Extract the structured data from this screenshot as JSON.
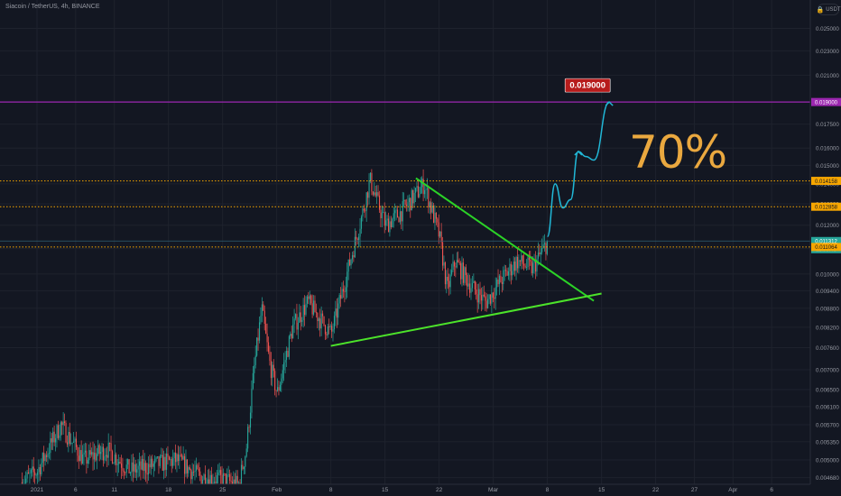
{
  "header": {
    "title": "Siacoin / TetherUS, 4h, BINANCE"
  },
  "currency_button": {
    "label": "USDT",
    "icon": "lock-icon"
  },
  "colors": {
    "background": "#131722",
    "grid": "#1e222d",
    "up": "#26a69a",
    "down": "#ef5350",
    "resistance": "#f7a600",
    "target": "#9c27b0",
    "trendline_down": "#2bd327",
    "trendline_up": "#4ce32a",
    "projection": "#21b7d6",
    "annotation": "#f5b041",
    "target_label_bg": "#b71c1c"
  },
  "chart_data": {
    "type": "candlestick",
    "title": "Siacoin / TetherUS, 4h, BINANCE",
    "x_tick_labels": [
      "2021",
      "6",
      "11",
      "18",
      "25",
      "Feb",
      "8",
      "15",
      "22",
      "Mar",
      "8",
      "15",
      "22",
      "27",
      "Apr",
      "6"
    ],
    "y_tick_labels": [
      "0.025000",
      "0.023000",
      "0.021000",
      "0.019000",
      "0.017500",
      "0.016000",
      "0.015000",
      "0.014000",
      "0.013000",
      "0.012000",
      "0.011000",
      "0.010000",
      "0.009400",
      "0.008800",
      "0.008200",
      "0.007600",
      "0.007000",
      "0.006500",
      "0.006100",
      "0.005700",
      "0.005350",
      "0.005000",
      "0.004680"
    ],
    "y_scale": "log",
    "ylim": [
      0.00455,
      0.0278
    ],
    "price_labels": [
      {
        "value": "0.019000",
        "kind": "target"
      },
      {
        "value": "0.014158",
        "kind": "resistance"
      },
      {
        "value": "0.012858",
        "kind": "resistance"
      },
      {
        "value": "0.011312",
        "kind": "last"
      },
      {
        "value": "11:58:43",
        "kind": "countdown"
      },
      {
        "value": "0.011064",
        "kind": "resistance"
      }
    ],
    "horizontal_lines": [
      {
        "value": 0.019,
        "style": "solid",
        "role": "target"
      },
      {
        "value": 0.014158,
        "style": "dotted",
        "role": "resistance"
      },
      {
        "value": 0.012858,
        "style": "dotted",
        "role": "resistance"
      },
      {
        "value": 0.011064,
        "style": "dotted",
        "role": "resistance"
      },
      {
        "value": 0.011312,
        "style": "thin",
        "role": "last-price"
      }
    ],
    "target_label": "0.019000",
    "annotation_text": "70%",
    "price_path": [
      {
        "date": "2020-12-30",
        "close": 0.0046
      },
      {
        "date": "2021-01-01",
        "close": 0.0048
      },
      {
        "date": "2021-01-04",
        "close": 0.0057
      },
      {
        "date": "2021-01-07",
        "close": 0.005
      },
      {
        "date": "2021-01-10",
        "close": 0.0052
      },
      {
        "date": "2021-01-13",
        "close": 0.0048
      },
      {
        "date": "2021-01-16",
        "close": 0.0049
      },
      {
        "date": "2021-01-19",
        "close": 0.005
      },
      {
        "date": "2021-01-22",
        "close": 0.0047
      },
      {
        "date": "2021-01-25",
        "close": 0.00465
      },
      {
        "date": "2021-01-27",
        "close": 0.00455
      },
      {
        "date": "2021-01-28",
        "close": 0.0052
      },
      {
        "date": "2021-01-29",
        "close": 0.007
      },
      {
        "date": "2021-01-30",
        "close": 0.0088
      },
      {
        "date": "2021-01-31",
        "close": 0.0072
      },
      {
        "date": "2021-02-01",
        "close": 0.0064
      },
      {
        "date": "2021-02-03",
        "close": 0.0082
      },
      {
        "date": "2021-02-05",
        "close": 0.009
      },
      {
        "date": "2021-02-07",
        "close": 0.0083
      },
      {
        "date": "2021-02-08",
        "close": 0.008
      },
      {
        "date": "2021-02-10",
        "close": 0.01
      },
      {
        "date": "2021-02-12",
        "close": 0.0125
      },
      {
        "date": "2021-02-13",
        "close": 0.0142
      },
      {
        "date": "2021-02-15",
        "close": 0.012
      },
      {
        "date": "2021-02-17",
        "close": 0.0126
      },
      {
        "date": "2021-02-19",
        "close": 0.0135
      },
      {
        "date": "2021-02-20",
        "close": 0.014
      },
      {
        "date": "2021-02-22",
        "close": 0.0115
      },
      {
        "date": "2021-02-23",
        "close": 0.0094
      },
      {
        "date": "2021-02-24",
        "close": 0.0105
      },
      {
        "date": "2021-02-26",
        "close": 0.0096
      },
      {
        "date": "2021-02-28",
        "close": 0.009
      },
      {
        "date": "2021-03-02",
        "close": 0.0098
      },
      {
        "date": "2021-03-04",
        "close": 0.0105
      },
      {
        "date": "2021-03-06",
        "close": 0.0102
      },
      {
        "date": "2021-03-08",
        "close": 0.01131
      }
    ],
    "trendlines": [
      {
        "name": "descending resistance",
        "from": {
          "date": "2021-02-19",
          "value": 0.0143
        },
        "to": {
          "date": "2021-03-14",
          "value": 0.00905
        }
      },
      {
        "name": "ascending support",
        "from": {
          "date": "2021-02-08",
          "value": 0.00765
        },
        "to": {
          "date": "2021-03-15",
          "value": 0.0093
        }
      }
    ],
    "projection_path": [
      {
        "date": "2021-03-08",
        "value": 0.0115
      },
      {
        "date": "2021-03-09",
        "value": 0.014
      },
      {
        "date": "2021-03-10",
        "value": 0.0128
      },
      {
        "date": "2021-03-11",
        "value": 0.0132
      },
      {
        "date": "2021-03-12",
        "value": 0.0158
      },
      {
        "date": "2021-03-13",
        "value": 0.0155
      },
      {
        "date": "2021-03-14",
        "value": 0.0153
      },
      {
        "date": "2021-03-16",
        "value": 0.019
      }
    ]
  }
}
